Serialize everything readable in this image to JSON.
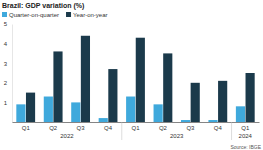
{
  "chart_data": {
    "type": "bar",
    "title": "Brazil: GDP variation (%)",
    "categories": [
      "Q1",
      "Q2",
      "Q3",
      "Q4",
      "Q1",
      "Q2",
      "Q3",
      "Q4",
      "Q1"
    ],
    "years": [
      "2022",
      "2022",
      "2022",
      "2022",
      "2023",
      "2023",
      "2023",
      "2023",
      "2024"
    ],
    "series": [
      {
        "name": "Quarter-on-quarter",
        "color": "#3fa9dc",
        "values": [
          0.9,
          1.3,
          1.0,
          0.2,
          1.3,
          0.9,
          0.1,
          0.1,
          0.8
        ]
      },
      {
        "name": "Year-on-year",
        "color": "#1b3a4b",
        "values": [
          1.5,
          3.6,
          4.4,
          2.7,
          4.3,
          3.5,
          2.0,
          2.1,
          2.5
        ]
      }
    ],
    "ylim": [
      0,
      5
    ],
    "yticks": [
      1,
      2,
      3,
      4,
      5
    ],
    "grid": false,
    "legend": "top left",
    "source": "Source: IBGE"
  }
}
